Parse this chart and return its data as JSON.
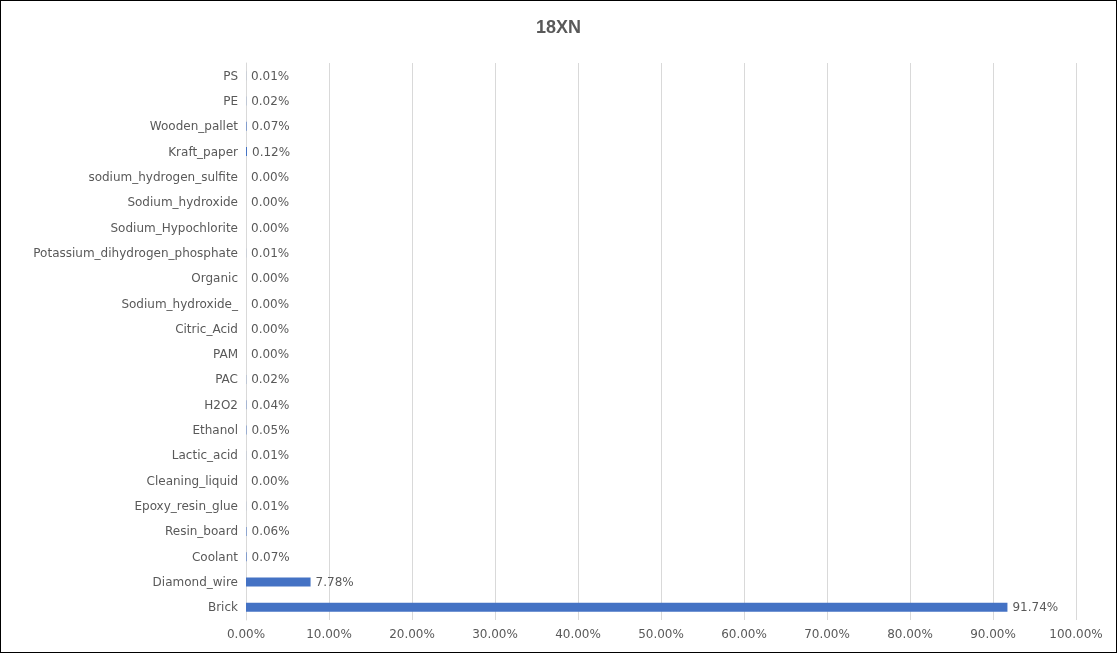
{
  "chart_data": {
    "type": "bar",
    "orientation": "horizontal",
    "title": "18XN",
    "categories": [
      "PS",
      "PE",
      "Wooden_pallet",
      "Kraft_paper",
      "sodium_hydrogen_sulfite",
      "Sodium_hydroxide",
      "Sodium_Hypochlorite",
      "Potassium_dihydrogen_phosphate",
      "Organic",
      "Sodium_hydroxide_",
      "Citric_Acid",
      "PAM",
      "PAC",
      "H2O2",
      "Ethanol",
      "Lactic_acid",
      "Cleaning_liquid",
      "Epoxy_resin_glue",
      "Resin_board",
      "Coolant",
      "Diamond_wire",
      "Brick"
    ],
    "values": [
      0.01,
      0.02,
      0.07,
      0.12,
      0.0,
      0.0,
      0.0,
      0.01,
      0.0,
      0.0,
      0.0,
      0.0,
      0.02,
      0.04,
      0.05,
      0.01,
      0.0,
      0.01,
      0.06,
      0.07,
      7.78,
      91.74
    ],
    "value_labels": [
      "0.01%",
      "0.02%",
      "0.07%",
      "0.12%",
      "0.00%",
      "0.00%",
      "0.00%",
      "0.01%",
      "0.00%",
      "0.00%",
      "0.00%",
      "0.00%",
      "0.02%",
      "0.04%",
      "0.05%",
      "0.01%",
      "0.00%",
      "0.01%",
      "0.06%",
      "0.07%",
      "7.78%",
      "91.74%"
    ],
    "color": "#4472c4",
    "xlim": [
      0,
      100
    ],
    "xticks": [
      {
        "value": 0,
        "label": "0.00%"
      },
      {
        "value": 10,
        "label": "10.00%"
      },
      {
        "value": 20,
        "label": "20.00%"
      },
      {
        "value": 30,
        "label": "30.00%"
      },
      {
        "value": 40,
        "label": "40.00%"
      },
      {
        "value": 50,
        "label": "50.00%"
      },
      {
        "value": 60,
        "label": "60.00%"
      },
      {
        "value": 70,
        "label": "70.00%"
      },
      {
        "value": 80,
        "label": "80.00%"
      },
      {
        "value": 90,
        "label": "90.00%"
      },
      {
        "value": 100,
        "label": "100.00%"
      }
    ],
    "grid": "x"
  }
}
